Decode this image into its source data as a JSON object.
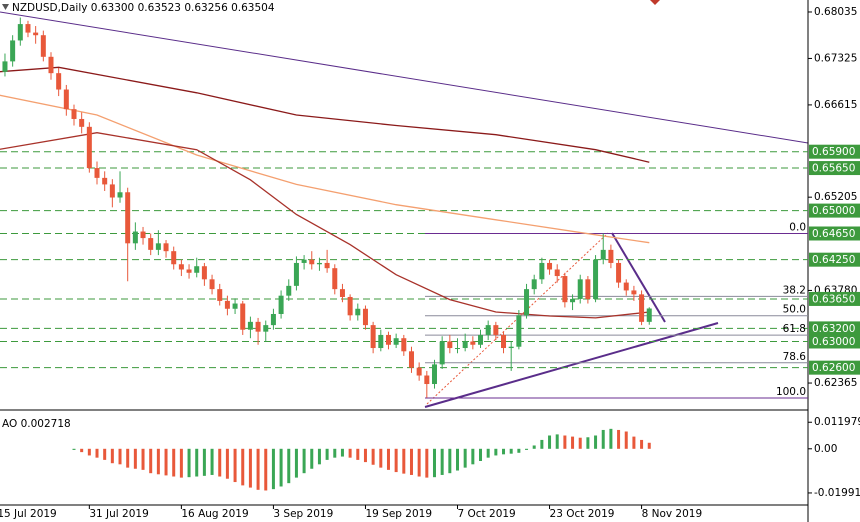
{
  "chart_data": {
    "type": "candlestick",
    "title": "NZDUSD,Daily  0.63300 0.63523 0.63256 0.63504",
    "categories": [
      "15 Jul 2019",
      null,
      null,
      null,
      null,
      null,
      null,
      null,
      null,
      null,
      null,
      null,
      "31 Jul 2019",
      null,
      null,
      null,
      null,
      null,
      null,
      null,
      null,
      null,
      null,
      null,
      "16 Aug 2019",
      null,
      null,
      null,
      null,
      null,
      null,
      null,
      null,
      null,
      null,
      null,
      "3 Sep 2019",
      null,
      null,
      null,
      null,
      null,
      null,
      null,
      null,
      null,
      null,
      null,
      "19 Sep 2019",
      null,
      null,
      null,
      null,
      null,
      null,
      null,
      null,
      null,
      null,
      null,
      "7 Oct 2019",
      null,
      null,
      null,
      null,
      null,
      null,
      null,
      null,
      null,
      null,
      null,
      "23 Oct 2019",
      null,
      null,
      null,
      null,
      null,
      null,
      null,
      null,
      null,
      null,
      null,
      "8 Nov 2019",
      null
    ],
    "open": [
      0.6698,
      0.6712,
      0.6728,
      0.676,
      0.6785,
      0.6772,
      0.6768,
      0.6735,
      0.671,
      0.6685,
      0.6655,
      0.664,
      0.6628,
      0.6565,
      0.655,
      0.654,
      0.652,
      0.6528,
      0.645,
      0.6468,
      0.6458,
      0.644,
      0.645,
      0.6438,
      0.6418,
      0.641,
      0.6405,
      0.6415,
      0.6395,
      0.638,
      0.6362,
      0.635,
      0.6358,
      0.6318,
      0.633,
      0.6315,
      0.6325,
      0.6342,
      0.637,
      0.6385,
      0.642,
      0.6425,
      0.6418,
      0.642,
      0.6412,
      0.638,
      0.6368,
      0.634,
      0.635,
      0.6325,
      0.629,
      0.631,
      0.6295,
      0.6305,
      0.6285,
      0.626,
      0.6248,
      0.6235,
      0.6265,
      0.63,
      0.629,
      0.629,
      0.63,
      0.6295,
      0.631,
      0.6325,
      0.631,
      0.629,
      0.6292,
      0.634,
      0.638,
      0.6395,
      0.642,
      0.641,
      0.64,
      0.636,
      0.6365,
      0.6395,
      0.6365,
      0.6425,
      0.644,
      0.642,
      0.639,
      0.6378,
      0.6372,
      0.633
    ],
    "high": [
      0.672,
      0.674,
      0.6768,
      0.6795,
      0.679,
      0.6782,
      0.6775,
      0.6742,
      0.6718,
      0.6692,
      0.6662,
      0.665,
      0.6635,
      0.6575,
      0.656,
      0.6548,
      0.656,
      0.6535,
      0.6482,
      0.6475,
      0.6465,
      0.647,
      0.6455,
      0.6445,
      0.6425,
      0.6418,
      0.6428,
      0.642,
      0.6402,
      0.6388,
      0.637,
      0.6366,
      0.6362,
      0.6338,
      0.6336,
      0.6332,
      0.635,
      0.6378,
      0.6395,
      0.643,
      0.6432,
      0.6438,
      0.6428,
      0.644,
      0.6418,
      0.6388,
      0.6372,
      0.6358,
      0.6355,
      0.633,
      0.6318,
      0.6315,
      0.6312,
      0.631,
      0.6292,
      0.6268,
      0.6255,
      0.6272,
      0.6308,
      0.631,
      0.6305,
      0.6312,
      0.6308,
      0.6318,
      0.6332,
      0.633,
      0.6315,
      0.63,
      0.6348,
      0.6388,
      0.6402,
      0.6428,
      0.6425,
      0.6418,
      0.6405,
      0.6372,
      0.6402,
      0.64,
      0.6432,
      0.6465,
      0.6448,
      0.6425,
      0.6395,
      0.6385,
      0.6378,
      0.63523
    ],
    "low": [
      0.669,
      0.6705,
      0.672,
      0.6752,
      0.6765,
      0.6755,
      0.6728,
      0.67,
      0.6675,
      0.6645,
      0.663,
      0.6618,
      0.6558,
      0.654,
      0.653,
      0.6505,
      0.6512,
      0.6392,
      0.644,
      0.6448,
      0.6432,
      0.6432,
      0.6428,
      0.641,
      0.64,
      0.6396,
      0.6398,
      0.6385,
      0.6372,
      0.6355,
      0.634,
      0.6342,
      0.631,
      0.6305,
      0.6295,
      0.63,
      0.6318,
      0.6335,
      0.6362,
      0.6378,
      0.641,
      0.641,
      0.6408,
      0.6405,
      0.6372,
      0.636,
      0.6332,
      0.6332,
      0.6318,
      0.6282,
      0.6285,
      0.6288,
      0.629,
      0.6278,
      0.6252,
      0.624,
      0.6214,
      0.6228,
      0.6258,
      0.6282,
      0.6282,
      0.6285,
      0.6288,
      0.629,
      0.6302,
      0.6302,
      0.6282,
      0.6255,
      0.6288,
      0.6335,
      0.6372,
      0.6388,
      0.6402,
      0.639,
      0.6352,
      0.6348,
      0.6358,
      0.6358,
      0.636,
      0.6418,
      0.6412,
      0.6382,
      0.637,
      0.6362,
      0.6325,
      0.63256
    ],
    "close": [
      0.6712,
      0.6728,
      0.676,
      0.6785,
      0.6772,
      0.6768,
      0.6735,
      0.671,
      0.6685,
      0.6655,
      0.664,
      0.6628,
      0.6565,
      0.655,
      0.654,
      0.652,
      0.6528,
      0.645,
      0.6468,
      0.6458,
      0.644,
      0.645,
      0.6438,
      0.6418,
      0.641,
      0.6405,
      0.6415,
      0.6395,
      0.638,
      0.6362,
      0.635,
      0.6358,
      0.6318,
      0.633,
      0.6315,
      0.6325,
      0.6342,
      0.637,
      0.6385,
      0.642,
      0.6425,
      0.6418,
      0.642,
      0.6412,
      0.638,
      0.6368,
      0.634,
      0.635,
      0.6325,
      0.629,
      0.631,
      0.6295,
      0.6305,
      0.6285,
      0.626,
      0.6248,
      0.6235,
      0.6265,
      0.63,
      0.629,
      0.629,
      0.63,
      0.6295,
      0.631,
      0.6325,
      0.631,
      0.629,
      0.6292,
      0.634,
      0.638,
      0.6395,
      0.642,
      0.641,
      0.64,
      0.636,
      0.6365,
      0.6395,
      0.6365,
      0.6425,
      0.644,
      0.642,
      0.639,
      0.6378,
      0.6372,
      0.633,
      0.63504
    ],
    "up_color": "#3aa655",
    "down_color": "#e8583a",
    "ylim": [
      0.61953,
      0.68218
    ],
    "yticks": [
      0.68035,
      0.67325,
      0.66615,
      0.65205,
      {
        "value": 0.6378,
        "label": "0.63780"
      },
      0.62365
    ],
    "level_ticks": [
      {
        "value": 0.659,
        "label": "0.65900"
      },
      {
        "value": 0.6565,
        "label": "0.65650"
      },
      {
        "value": 0.65,
        "label": "0.65000"
      },
      {
        "value": 0.6465,
        "label": "0.64650"
      },
      {
        "value": 0.6425,
        "label": "0.64250"
      },
      {
        "value": 0.6365,
        "label": "0.63650"
      },
      {
        "value": 0.632,
        "label": "0.63200"
      },
      {
        "value": 0.63,
        "label": "0.63000"
      },
      {
        "value": 0.626,
        "label": "0.62600"
      }
    ],
    "level_color": "#3d9a3d",
    "fib_levels": [
      {
        "value": 0.6465,
        "label": "0.0"
      },
      {
        "value": 0.6369,
        "label": "38.2"
      },
      {
        "value": 0.63394,
        "label": "50.0"
      },
      {
        "value": 0.63097,
        "label": "61.8"
      },
      {
        "value": 0.62675,
        "label": "78.6"
      },
      {
        "value": 0.62137,
        "label": "100.0"
      }
    ],
    "lines": [
      {
        "color": "#8b1a1a",
        "x": [
          0,
          8,
          26,
          39,
          52,
          65,
          78,
          85
        ],
        "values": [
          0.6712,
          0.6719,
          0.668,
          0.6646,
          0.663,
          0.6616,
          0.6593,
          0.6574
        ]
      },
      {
        "color": "#f4a070",
        "x": [
          0,
          13,
          26,
          39,
          52,
          65,
          78,
          85
        ],
        "values": [
          0.6677,
          0.6646,
          0.6585,
          0.654,
          0.6509,
          0.6486,
          0.6463,
          0.6451
        ]
      },
      {
        "color": "#a8322a",
        "x": [
          0,
          13,
          26,
          33,
          39,
          46,
          52,
          59,
          65,
          72,
          78,
          85
        ],
        "values": [
          0.6593,
          0.6619,
          0.6593,
          0.6547,
          0.6494,
          0.6448,
          0.6402,
          0.6364,
          0.6345,
          0.6339,
          0.6336,
          0.6345
        ]
      }
    ],
    "ao_title": "AO 0.002718",
    "ao_values": [
      null,
      null,
      null,
      null,
      null,
      null,
      null,
      null,
      null,
      null,
      -0.0005,
      -0.0015,
      -0.003,
      -0.004,
      -0.005,
      -0.0065,
      -0.007,
      -0.0085,
      -0.009,
      -0.0095,
      -0.011,
      -0.0115,
      -0.012,
      -0.0125,
      -0.013,
      -0.0128,
      -0.0125,
      -0.0122,
      -0.0118,
      -0.0125,
      -0.0135,
      -0.015,
      -0.0165,
      -0.0175,
      -0.0185,
      -0.0188,
      -0.0182,
      -0.017,
      -0.0155,
      -0.013,
      -0.011,
      -0.009,
      -0.007,
      -0.005,
      -0.004,
      -0.0035,
      -0.004,
      -0.005,
      -0.006,
      -0.0072,
      -0.0085,
      -0.0095,
      -0.0105,
      -0.0112,
      -0.0118,
      -0.0125,
      -0.013,
      -0.0128,
      -0.0118,
      -0.011,
      -0.0098,
      -0.0085,
      -0.007,
      -0.0055,
      -0.004,
      -0.003,
      -0.0025,
      -0.0022,
      -0.0018,
      -0.0005,
      0.0015,
      0.004,
      0.006,
      0.0065,
      0.006,
      0.0055,
      0.005,
      0.0052,
      0.006,
      0.0085,
      0.009,
      0.0085,
      0.0078,
      0.0055,
      0.004,
      0.002718
    ],
    "ao_ylim": [
      -0.02535,
      0.0175
    ],
    "ao_yticks": [
      0.011979,
      {
        "value": 0,
        "label": "0.00"
      },
      -0.019914
    ]
  }
}
